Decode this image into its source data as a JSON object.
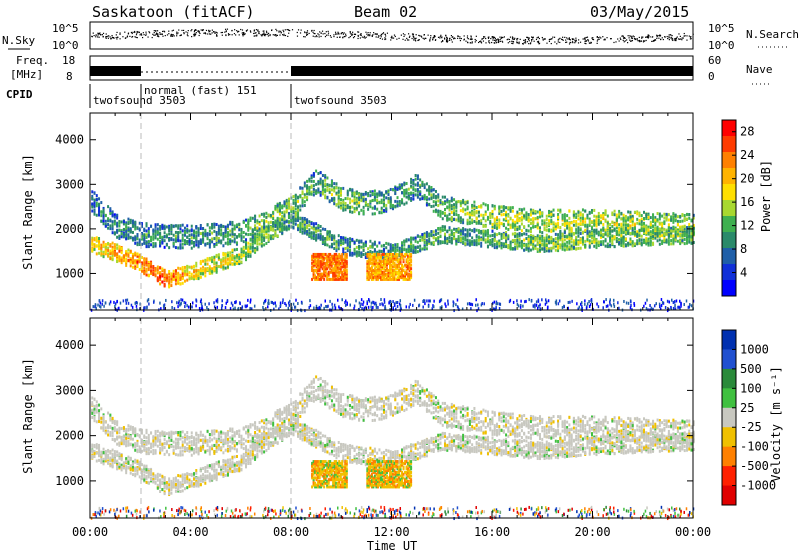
{
  "header": {
    "station": "Saskatoon (fitACF)",
    "beam": "Beam 02",
    "date": "03/May/2015"
  },
  "top_panels": {
    "nsky_label": "N.Sky",
    "nsky_ticks": [
      "10^5",
      "10^0"
    ],
    "nsearch_label": "N.Search",
    "nsearch_ticks": [
      "10^5",
      "10^0"
    ],
    "freq_label_1": "Freq.",
    "freq_label_2": "[MHz]",
    "freq_ticks": [
      "18",
      "8"
    ],
    "nave_label": "Nave",
    "nave_ticks": [
      "60",
      "0"
    ],
    "cpid_label": "CPID",
    "cpid_segments": [
      {
        "name": "twofsound 3503",
        "start": 0,
        "end": 2
      },
      {
        "name": "normal (fast) 151",
        "start": 2,
        "end": 8
      },
      {
        "name": "twofsound 3503",
        "start": 8,
        "end": 24
      }
    ]
  },
  "power_panel": {
    "ylabel": "Slant Range [km]",
    "yticks": [
      "4000",
      "3000",
      "2000",
      "1000"
    ],
    "colorbar_label": "Power [dB]",
    "colorbar_ticks": [
      "28",
      "24",
      "20",
      "16",
      "12",
      "8",
      "4"
    ],
    "colors": [
      "#ff0000",
      "#ff3b00",
      "#ff8000",
      "#ffb300",
      "#ffdf00",
      "#a8d830",
      "#3fb050",
      "#2a8a6a",
      "#1f5fa8",
      "#1030d8",
      "#0000ff"
    ]
  },
  "velocity_panel": {
    "ylabel": "Slant Range [km]",
    "yticks": [
      "4000",
      "3000",
      "2000",
      "1000"
    ],
    "colorbar_label": "Velocity [m s⁻¹]",
    "colorbar_ticks": [
      "1000",
      "500",
      "100",
      "25",
      "-25",
      "-100",
      "-500",
      "-1000"
    ],
    "colors": [
      "#0030b0",
      "#2050d0",
      "#2a8a3a",
      "#40c040",
      "#c8c8c0",
      "#f0c000",
      "#ff8000",
      "#ff2000",
      "#e00000"
    ]
  },
  "xaxis": {
    "label": "Time UT",
    "ticks": [
      "00:00",
      "04:00",
      "08:00",
      "12:00",
      "16:00",
      "20:00",
      "00:00"
    ]
  },
  "chart_data": {
    "type": "heatmap",
    "title": "Saskatoon (fitACF) Beam 02 03/May/2015",
    "xlabel": "Time UT",
    "ylabel": "Slant Range [km]",
    "xlim": [
      0,
      24
    ],
    "ylim": [
      180,
      4600
    ],
    "echo_bands": [
      {
        "name": "lower band",
        "time": [
          0,
          1,
          2,
          3,
          4,
          5,
          6,
          7,
          8,
          10,
          12,
          14,
          16,
          18,
          20,
          22,
          24
        ],
        "range_km": [
          1700,
          1500,
          1250,
          900,
          1050,
          1250,
          1450,
          1900,
          2250,
          1650,
          1500,
          1900,
          1800,
          1700,
          1800,
          1850,
          1900
        ],
        "power_db": [
          18,
          22,
          24,
          26,
          20,
          18,
          16,
          14,
          12,
          10,
          10,
          12,
          12,
          14,
          14,
          14,
          14
        ]
      },
      {
        "name": "upper band",
        "time": [
          0,
          1,
          2,
          4,
          6,
          7,
          8,
          9,
          10,
          11,
          12,
          13,
          14,
          16,
          18,
          20,
          22,
          24
        ],
        "range_km": [
          2700,
          2100,
          1900,
          1850,
          1950,
          2200,
          2500,
          3100,
          2700,
          2600,
          2700,
          3000,
          2500,
          2300,
          2200,
          2200,
          2150,
          2100
        ],
        "power_db": [
          8,
          10,
          10,
          10,
          12,
          14,
          14,
          12,
          14,
          12,
          12,
          10,
          14,
          16,
          16,
          16,
          16,
          14
        ]
      }
    ],
    "high_power_patches": [
      {
        "time_start": 8.8,
        "time_end": 10.2,
        "range_km": [
          900,
          1500
        ],
        "power_db": 28
      },
      {
        "time_start": 11.0,
        "time_end": 12.8,
        "range_km": [
          900,
          1500
        ],
        "power_db": 26
      }
    ],
    "power_colorbar": {
      "label": "Power [dB]",
      "range": [
        0,
        30
      ],
      "ticks": [
        4,
        8,
        12,
        16,
        20,
        24,
        28
      ]
    },
    "velocity_colorbar": {
      "label": "Velocity [m s^-1]",
      "ticks": [
        1000,
        500,
        100,
        25,
        -25,
        -100,
        -500,
        -1000
      ]
    }
  }
}
